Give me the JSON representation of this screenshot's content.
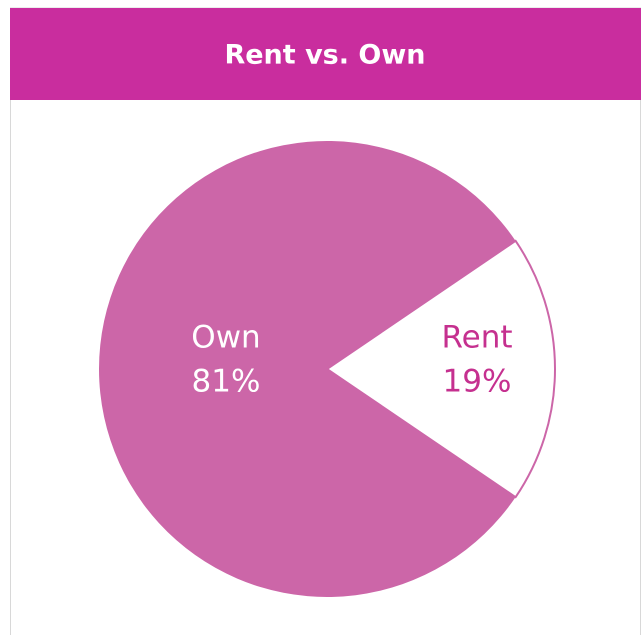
{
  "chart_data": {
    "type": "pie",
    "title": "Rent vs. Own",
    "categories": [
      "Rent",
      "Own"
    ],
    "values": [
      19,
      81
    ],
    "value_labels": [
      "19%",
      "81%"
    ],
    "colors": [
      "#ffffff",
      "#cc66a8"
    ]
  }
}
